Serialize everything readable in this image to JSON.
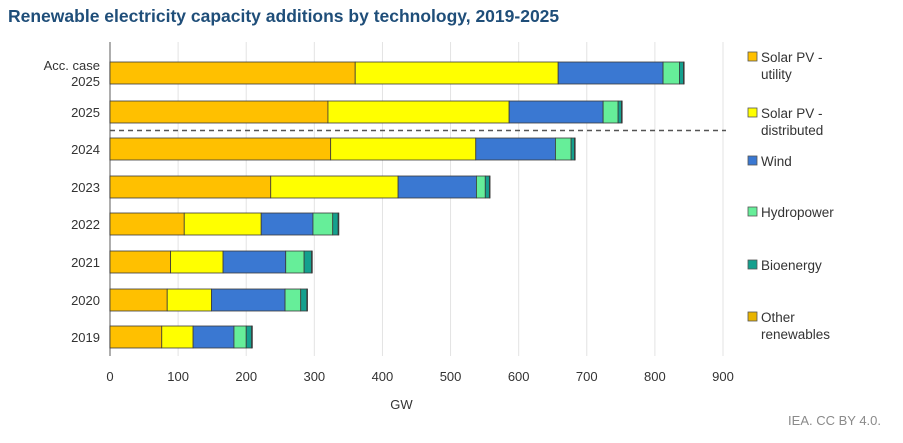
{
  "chart_data": {
    "type": "bar",
    "orientation": "horizontal",
    "stacked": true,
    "title": "Renewable electricity capacity additions by technology, 2019-2025",
    "xlabel": "GW",
    "ylabel": "",
    "xlim": [
      0,
      900
    ],
    "xticks": [
      0,
      100,
      200,
      300,
      400,
      500,
      600,
      700,
      800,
      900
    ],
    "grid": true,
    "legend_position": "right",
    "categories": [
      [
        "Acc. case",
        "2025"
      ],
      [
        "2025"
      ],
      [
        "2024"
      ],
      [
        "2023"
      ],
      [
        "2022"
      ],
      [
        "2021"
      ],
      [
        "2020"
      ],
      [
        "2019"
      ]
    ],
    "separator_after_category_index": 1,
    "series": [
      {
        "name": [
          "Solar PV -",
          "utility"
        ],
        "color": "#FFC000",
        "values": [
          360,
          320,
          324,
          236,
          109,
          89,
          84,
          76
        ]
      },
      {
        "name": [
          "Solar PV -",
          "distributed"
        ],
        "color": "#FFFF00",
        "values": [
          298,
          266,
          213,
          187,
          113,
          77,
          65,
          46
        ]
      },
      {
        "name": [
          "Wind"
        ],
        "color": "#3A78D2",
        "values": [
          154,
          138,
          117,
          115,
          76,
          92,
          108,
          60
        ]
      },
      {
        "name": [
          "Hydropower"
        ],
        "color": "#66EE99",
        "values": [
          24,
          22,
          23,
          13,
          29,
          27,
          23,
          18
        ]
      },
      {
        "name": [
          "Bioenergy"
        ],
        "color": "#14A08E",
        "values": [
          6,
          5,
          5,
          6,
          8,
          11,
          9,
          8
        ]
      },
      {
        "name": [
          "Other",
          "renewables"
        ],
        "color": "#E8B400",
        "values": [
          1,
          1,
          1,
          1,
          1,
          1,
          1,
          1
        ]
      }
    ]
  },
  "source": "IEA. CC BY 4.0."
}
